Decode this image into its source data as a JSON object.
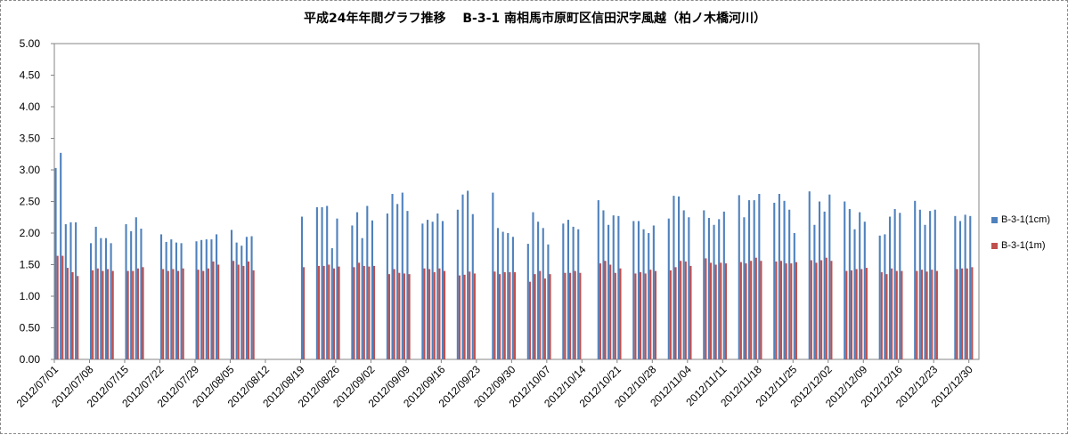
{
  "chart_data": {
    "type": "bar",
    "title": "平成24年年間グラフ推移　 B-3-1 南相馬市原町区信田沢字風越（柏ノ木橋河川）",
    "xlabel": "",
    "ylabel": "",
    "ylim": [
      0,
      5
    ],
    "yticks": [
      "0.00",
      "0.50",
      "1.00",
      "1.50",
      "2.00",
      "2.50",
      "3.00",
      "3.50",
      "4.00",
      "4.50",
      "5.00"
    ],
    "grid": false,
    "legend_position": "right",
    "xtick_labels": [
      "2012/07/01",
      "2012/07/08",
      "2012/07/15",
      "2012/07/22",
      "2012/07/29",
      "2012/08/05",
      "2012/08/12",
      "2012/08/19",
      "2012/08/26",
      "2012/09/02",
      "2012/09/09",
      "2012/09/16",
      "2012/09/23",
      "2012/09/30",
      "2012/10/07",
      "2012/10/14",
      "2012/10/21",
      "2012/10/28",
      "2012/11/04",
      "2012/11/11",
      "2012/11/18",
      "2012/11/25",
      "2012/12/02",
      "2012/12/09",
      "2012/12/16",
      "2012/12/23",
      "2012/12/30"
    ],
    "categories": [
      "2012/07/01",
      "2012/07/02",
      "2012/07/03",
      "2012/07/04",
      "2012/07/05",
      "2012/07/06",
      "2012/07/07",
      "2012/07/08",
      "2012/07/09",
      "2012/07/10",
      "2012/07/11",
      "2012/07/12",
      "2012/07/13",
      "2012/07/14",
      "2012/07/15",
      "2012/07/16",
      "2012/07/17",
      "2012/07/18",
      "2012/07/19",
      "2012/07/20",
      "2012/07/21",
      "2012/07/22",
      "2012/07/23",
      "2012/07/24",
      "2012/07/25",
      "2012/07/26",
      "2012/07/27",
      "2012/07/28",
      "2012/07/29",
      "2012/07/30",
      "2012/07/31",
      "2012/08/01",
      "2012/08/02",
      "2012/08/03",
      "2012/08/04",
      "2012/08/05",
      "2012/08/06",
      "2012/08/07",
      "2012/08/08",
      "2012/08/09",
      "2012/08/10",
      "2012/08/11",
      "2012/08/12",
      "2012/08/13",
      "2012/08/14",
      "2012/08/15",
      "2012/08/16",
      "2012/08/17",
      "2012/08/18",
      "2012/08/19",
      "2012/08/20",
      "2012/08/21",
      "2012/08/22",
      "2012/08/23",
      "2012/08/24",
      "2012/08/25",
      "2012/08/26",
      "2012/08/27",
      "2012/08/28",
      "2012/08/29",
      "2012/08/30",
      "2012/08/31",
      "2012/09/01",
      "2012/09/02",
      "2012/09/03",
      "2012/09/04",
      "2012/09/05",
      "2012/09/06",
      "2012/09/07",
      "2012/09/08",
      "2012/09/09",
      "2012/09/10",
      "2012/09/11",
      "2012/09/12",
      "2012/09/13",
      "2012/09/14",
      "2012/09/15",
      "2012/09/16",
      "2012/09/17",
      "2012/09/18",
      "2012/09/19",
      "2012/09/20",
      "2012/09/21",
      "2012/09/22",
      "2012/09/23",
      "2012/09/24",
      "2012/09/25",
      "2012/09/26",
      "2012/09/27",
      "2012/09/28",
      "2012/09/29",
      "2012/09/30",
      "2012/10/01",
      "2012/10/02",
      "2012/10/03",
      "2012/10/04",
      "2012/10/05",
      "2012/10/06",
      "2012/10/07",
      "2012/10/08",
      "2012/10/09",
      "2012/10/10",
      "2012/10/11",
      "2012/10/12",
      "2012/10/13",
      "2012/10/14",
      "2012/10/15",
      "2012/10/16",
      "2012/10/17",
      "2012/10/18",
      "2012/10/19",
      "2012/10/20",
      "2012/10/21",
      "2012/10/22",
      "2012/10/23",
      "2012/10/24",
      "2012/10/25",
      "2012/10/26",
      "2012/10/27",
      "2012/10/28",
      "2012/10/29",
      "2012/10/30",
      "2012/10/31",
      "2012/11/01",
      "2012/11/02",
      "2012/11/03",
      "2012/11/04",
      "2012/11/05",
      "2012/11/06",
      "2012/11/07",
      "2012/11/08",
      "2012/11/09",
      "2012/11/10",
      "2012/11/11",
      "2012/11/12",
      "2012/11/13",
      "2012/11/14",
      "2012/11/15",
      "2012/11/16",
      "2012/11/17",
      "2012/11/18",
      "2012/11/19",
      "2012/11/20",
      "2012/11/21",
      "2012/11/22",
      "2012/11/23",
      "2012/11/24",
      "2012/11/25",
      "2012/11/26",
      "2012/11/27",
      "2012/11/28",
      "2012/11/29",
      "2012/11/30",
      "2012/12/01",
      "2012/12/02",
      "2012/12/03",
      "2012/12/04",
      "2012/12/05",
      "2012/12/06",
      "2012/12/07",
      "2012/12/08",
      "2012/12/09",
      "2012/12/10",
      "2012/12/11",
      "2012/12/12",
      "2012/12/13",
      "2012/12/14",
      "2012/12/15",
      "2012/12/16",
      "2012/12/17",
      "2012/12/18",
      "2012/12/19",
      "2012/12/20",
      "2012/12/21",
      "2012/12/22",
      "2012/12/23",
      "2012/12/24",
      "2012/12/25",
      "2012/12/26",
      "2012/12/27",
      "2012/12/28",
      "2012/12/29",
      "2012/12/30",
      "2012/12/31"
    ],
    "series": [
      {
        "name": "B-3-1(1cm)",
        "color": "#4f81bd",
        "values": [
          3.03,
          3.27,
          2.14,
          2.17,
          2.17,
          null,
          null,
          1.84,
          2.1,
          1.92,
          1.92,
          1.84,
          null,
          null,
          2.14,
          2.03,
          2.25,
          2.07,
          null,
          null,
          null,
          1.98,
          1.86,
          1.9,
          1.85,
          1.84,
          null,
          null,
          1.87,
          1.89,
          1.9,
          1.9,
          1.98,
          null,
          null,
          2.05,
          1.85,
          1.8,
          1.94,
          1.95,
          null,
          null,
          null,
          null,
          null,
          null,
          null,
          null,
          null,
          2.26,
          null,
          null,
          2.41,
          2.41,
          2.43,
          1.76,
          2.23,
          null,
          null,
          2.12,
          2.33,
          1.92,
          2.43,
          2.2,
          null,
          null,
          2.31,
          2.62,
          2.46,
          2.64,
          2.35,
          null,
          null,
          2.15,
          2.21,
          2.18,
          2.31,
          2.19,
          null,
          null,
          2.37,
          2.61,
          2.67,
          2.3,
          null,
          null,
          null,
          2.64,
          2.08,
          2.02,
          2.0,
          1.94,
          null,
          null,
          1.83,
          2.33,
          2.18,
          2.08,
          1.82,
          null,
          null,
          2.15,
          2.21,
          2.1,
          2.06,
          null,
          null,
          null,
          2.52,
          2.36,
          2.13,
          2.28,
          2.27,
          null,
          null,
          2.19,
          2.19,
          2.06,
          2.0,
          2.12,
          null,
          null,
          2.23,
          2.59,
          2.58,
          2.36,
          2.25,
          null,
          null,
          2.36,
          2.24,
          2.13,
          2.22,
          2.34,
          null,
          null,
          2.6,
          2.25,
          2.52,
          2.52,
          2.62,
          null,
          null,
          2.48,
          2.62,
          2.51,
          2.37,
          2.0,
          null,
          null,
          2.66,
          2.13,
          2.5,
          2.34,
          2.61,
          null,
          null,
          2.5,
          2.38,
          2.06,
          2.33,
          2.18,
          null,
          null,
          1.96,
          1.98,
          2.26,
          2.38,
          2.32,
          null,
          null,
          2.51,
          2.37,
          2.13,
          2.35,
          2.37,
          null,
          null,
          null,
          2.27,
          2.19,
          2.29,
          2.27,
          null
        ]
      },
      {
        "name": "B-3-1(1m)",
        "color": "#c0504d",
        "values": [
          1.64,
          1.64,
          1.45,
          1.38,
          1.32,
          null,
          null,
          1.41,
          1.44,
          1.4,
          1.43,
          1.4,
          null,
          null,
          1.4,
          1.4,
          1.44,
          1.46,
          null,
          null,
          null,
          1.43,
          1.4,
          1.43,
          1.4,
          1.44,
          null,
          null,
          1.42,
          1.4,
          1.44,
          1.55,
          1.5,
          null,
          null,
          1.56,
          1.5,
          1.48,
          1.55,
          1.41,
          null,
          null,
          null,
          null,
          null,
          null,
          null,
          null,
          null,
          1.46,
          null,
          null,
          1.48,
          1.48,
          1.5,
          1.44,
          1.47,
          null,
          null,
          1.46,
          1.53,
          1.48,
          1.47,
          1.48,
          null,
          null,
          1.35,
          1.43,
          1.37,
          1.36,
          1.35,
          null,
          null,
          1.44,
          1.43,
          1.38,
          1.44,
          1.4,
          null,
          null,
          1.33,
          1.34,
          1.39,
          1.36,
          null,
          null,
          null,
          1.39,
          1.35,
          1.38,
          1.38,
          1.38,
          null,
          null,
          1.23,
          1.35,
          1.4,
          1.28,
          1.35,
          null,
          null,
          1.37,
          1.37,
          1.4,
          1.37,
          null,
          null,
          null,
          1.52,
          1.56,
          1.5,
          1.37,
          1.44,
          null,
          null,
          1.36,
          1.38,
          1.36,
          1.42,
          1.4,
          null,
          null,
          1.41,
          1.46,
          1.56,
          1.55,
          1.48,
          null,
          null,
          1.6,
          1.53,
          1.5,
          1.53,
          1.52,
          null,
          null,
          1.54,
          1.52,
          1.56,
          1.61,
          1.56,
          null,
          null,
          1.55,
          1.56,
          1.52,
          1.52,
          1.54,
          null,
          null,
          1.57,
          1.53,
          1.57,
          1.61,
          1.56,
          null,
          null,
          1.4,
          1.41,
          1.43,
          1.43,
          1.45,
          null,
          null,
          1.38,
          1.35,
          1.44,
          1.4,
          1.4,
          null,
          null,
          1.4,
          1.42,
          1.39,
          1.42,
          1.4,
          null,
          null,
          null,
          1.43,
          1.44,
          1.44,
          1.46,
          null
        ]
      }
    ]
  }
}
